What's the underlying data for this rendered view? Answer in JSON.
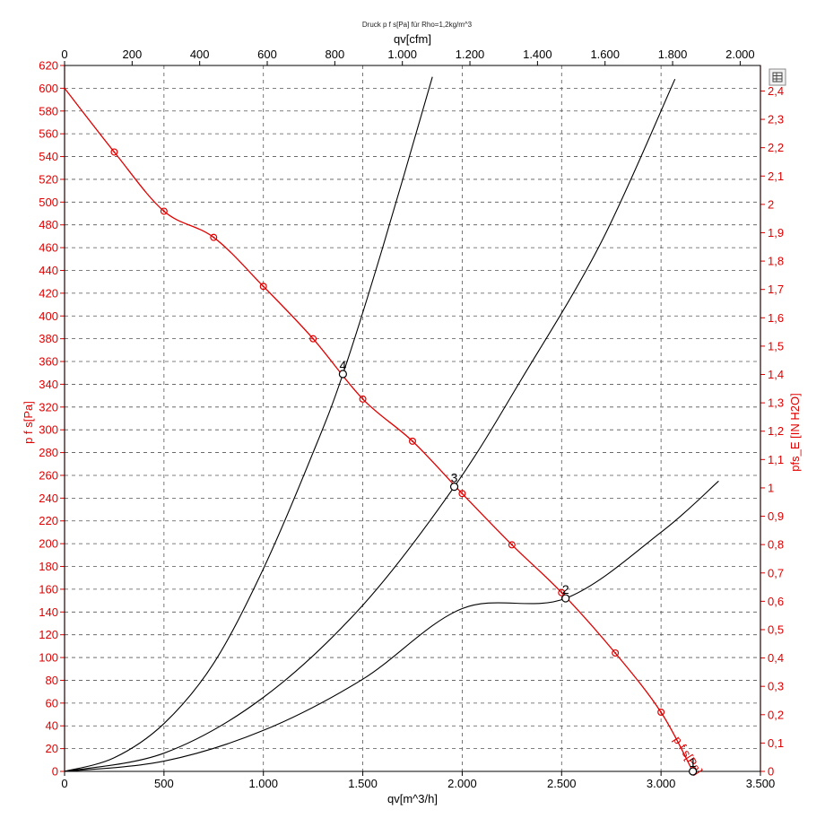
{
  "chart_data": {
    "type": "line",
    "title": "Druck p f s[Pa] für Rho=1,2kg/m^3",
    "xlabel": "qv[m^3/h]",
    "x2label": "qv[cfm]",
    "ylabel": "p f s[Pa]",
    "y2label": "pfs_E [IN H2O]",
    "xlim": [
      0,
      3500
    ],
    "ylim": [
      0,
      620
    ],
    "x2lim": [
      0,
      2060
    ],
    "y2lim": [
      0,
      2.49
    ],
    "x_ticks": [
      "0",
      "500",
      "1.000",
      "1.500",
      "2.000",
      "2.500",
      "3.000",
      "3.500"
    ],
    "x_tick_values": [
      0,
      500,
      1000,
      1500,
      2000,
      2500,
      3000,
      3500
    ],
    "x2_ticks": [
      "0",
      "200",
      "400",
      "600",
      "800",
      "1.000",
      "1.200",
      "1.400",
      "1.600",
      "1.800",
      "2.000"
    ],
    "x2_tick_values": [
      0,
      200,
      400,
      600,
      800,
      1000,
      1200,
      1400,
      1600,
      1800,
      2000
    ],
    "y_ticks": [
      "0",
      "20",
      "40",
      "60",
      "80",
      "100",
      "120",
      "140",
      "160",
      "180",
      "200",
      "220",
      "240",
      "260",
      "280",
      "300",
      "320",
      "340",
      "360",
      "380",
      "400",
      "420",
      "440",
      "460",
      "480",
      "500",
      "520",
      "540",
      "560",
      "580",
      "600",
      "620"
    ],
    "y_tick_values": [
      0,
      20,
      40,
      60,
      80,
      100,
      120,
      140,
      160,
      180,
      200,
      220,
      240,
      260,
      280,
      300,
      320,
      340,
      360,
      380,
      400,
      420,
      440,
      460,
      480,
      500,
      520,
      540,
      560,
      580,
      600,
      620
    ],
    "y2_ticks": [
      "0",
      "0,1",
      "0,2",
      "0,3",
      "0,4",
      "0,5",
      "0,6",
      "0,7",
      "0,8",
      "0,9",
      "1",
      "1,1",
      "1,2",
      "1,3",
      "1,4",
      "1,5",
      "1,6",
      "1,7",
      "1,8",
      "1,9",
      "2",
      "2,1",
      "2,2",
      "2,3",
      "2,4"
    ],
    "y2_tick_values": [
      0,
      0.1,
      0.2,
      0.3,
      0.4,
      0.5,
      0.6,
      0.7,
      0.8,
      0.9,
      1,
      1.1,
      1.2,
      1.3,
      1.4,
      1.5,
      1.6,
      1.7,
      1.8,
      1.9,
      2,
      2.1,
      2.2,
      2.3,
      2.4
    ],
    "grid": true,
    "series": [
      {
        "name": "p f s[Pa]",
        "color": "#e00000",
        "x": [
          0,
          250,
          500,
          750,
          1000,
          1250,
          1500,
          1750,
          2000,
          2250,
          2500,
          2770,
          3000,
          3160
        ],
        "y": [
          600,
          544,
          492,
          469,
          426,
          380,
          327,
          290,
          244,
          199,
          157,
          104,
          52,
          0
        ]
      }
    ],
    "system_curves": [
      {
        "x": [
          0,
          250,
          500,
          750,
          1000,
          1250,
          1400,
          1600,
          1850
        ],
        "y": [
          0,
          12,
          42,
          95,
          178,
          280,
          349,
          460,
          610
        ]
      },
      {
        "x": [
          0,
          500,
          1000,
          1500,
          1960,
          2300,
          2700,
          3070
        ],
        "y": [
          0,
          16,
          65,
          146,
          250,
          345,
          465,
          608
        ]
      },
      {
        "x": [
          0,
          500,
          1000,
          1500,
          2000,
          2520,
          3000,
          3290
        ],
        "y": [
          0,
          9,
          36,
          81,
          143,
          152,
          210,
          255
        ]
      }
    ],
    "operating_points": [
      {
        "label": "1",
        "x": 3160,
        "y": 0
      },
      {
        "label": "2",
        "x": 2520,
        "y": 152
      },
      {
        "label": "3",
        "x": 1960,
        "y": 250
      },
      {
        "label": "4",
        "x": 1400,
        "y": 349
      }
    ],
    "fan_curve_label": "p f s[Pa]"
  },
  "toolbar": {
    "table_icon": "table-icon"
  }
}
